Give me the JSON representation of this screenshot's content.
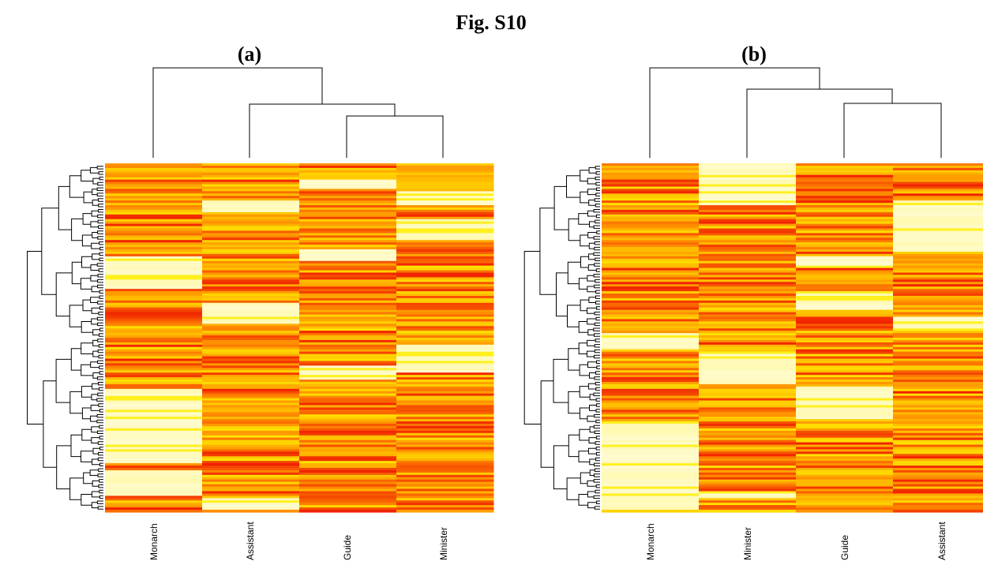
{
  "figure_title": "Fig. S10",
  "colors": {
    "low": "#fffcdc",
    "mid": "#ffee00",
    "high": "#ff9500",
    "max": "#f02000"
  },
  "chart_data": [
    {
      "type": "heatmap",
      "panel_label": "(a)",
      "columns": [
        "Monarch",
        "Assistant",
        "Guide",
        "Minister"
      ],
      "row_dendrogram": true,
      "column_dendrogram": true
    },
    {
      "type": "heatmap",
      "panel_label": "(b)",
      "columns": [
        "Monarch",
        "Minister",
        "Guide",
        "Assistant"
      ],
      "row_dendrogram": true,
      "column_dendrogram": true
    }
  ]
}
